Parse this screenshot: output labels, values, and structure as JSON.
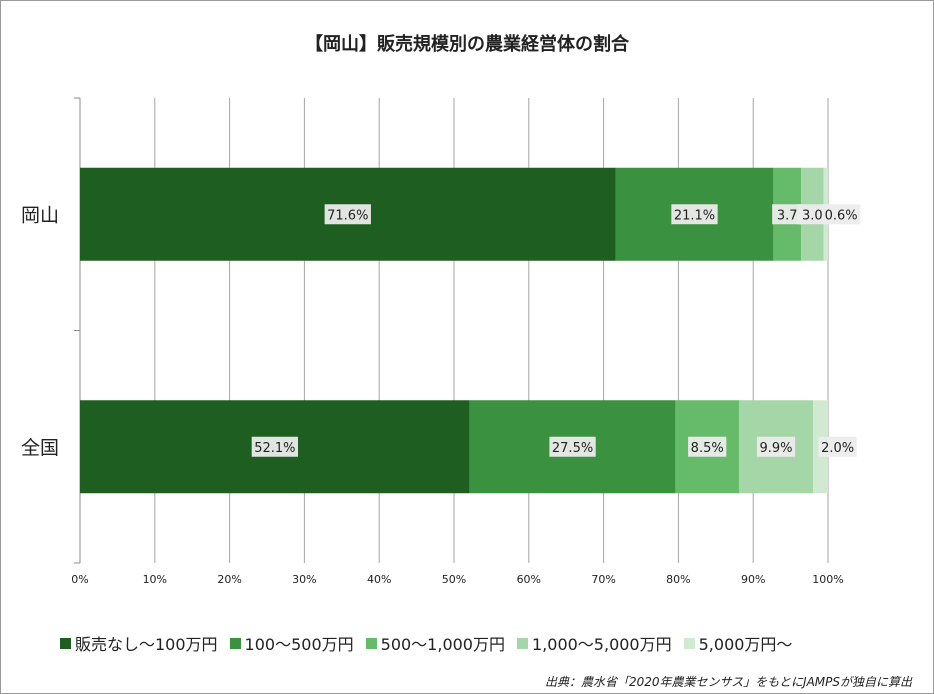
{
  "chart_data": {
    "type": "bar",
    "orientation": "horizontal",
    "stacked": "percent",
    "title": "【岡山】販売規模別の農業経営体の割合",
    "categories": [
      "岡山",
      "全国"
    ],
    "series": [
      {
        "name": "販売なし～100万円",
        "color": "#1e5e21",
        "values": [
          71.6,
          52.1
        ],
        "labels": [
          "71.6%",
          "52.1%"
        ]
      },
      {
        "name": "100～500万円",
        "color": "#3a913f",
        "values": [
          21.1,
          27.5
        ],
        "labels": [
          "21.1%",
          "27.5%"
        ]
      },
      {
        "name": "500～1,000万円",
        "color": "#66bb6a",
        "values": [
          3.7,
          8.5
        ],
        "labels": [
          "3.7",
          "8.5%"
        ]
      },
      {
        "name": "1,000～5,000万円",
        "color": "#a5d6a7",
        "values": [
          3.0,
          9.9
        ],
        "labels": [
          "3.0",
          "9.9%"
        ]
      },
      {
        "name": "5,000万円～",
        "color": "#d0ead1",
        "values": [
          0.6,
          2.0
        ],
        "labels": [
          "0.6%",
          "2.0%"
        ]
      }
    ],
    "xlim": [
      0,
      100
    ],
    "xticks": [
      "0%",
      "10%",
      "20%",
      "30%",
      "40%",
      "50%",
      "60%",
      "70%",
      "80%",
      "90%",
      "100%"
    ],
    "grid": true,
    "legend": "bottom"
  },
  "source_note": "出典：農水省「2020年農業センサス」をもとにJAMPSが独自に算出"
}
